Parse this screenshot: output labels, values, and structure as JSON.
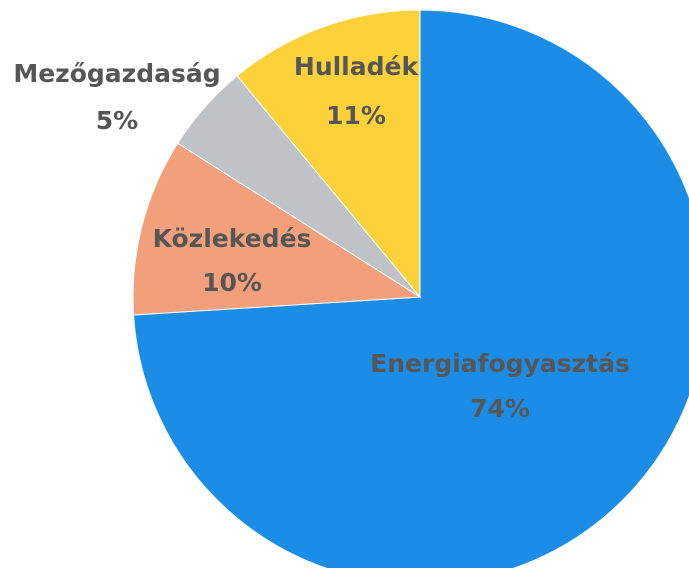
{
  "chart_data": {
    "type": "pie",
    "categories": [
      "Energiafogyasztás",
      "Közlekedés",
      "Mezőgazdaság",
      "Hulladék"
    ],
    "values": [
      74,
      10,
      5,
      11
    ],
    "value_labels": [
      "74%",
      "10%",
      "5%",
      "11%"
    ],
    "colors": [
      "#1c8de6",
      "#f2a07c",
      "#bfc3c7",
      "#fcd13a"
    ]
  }
}
